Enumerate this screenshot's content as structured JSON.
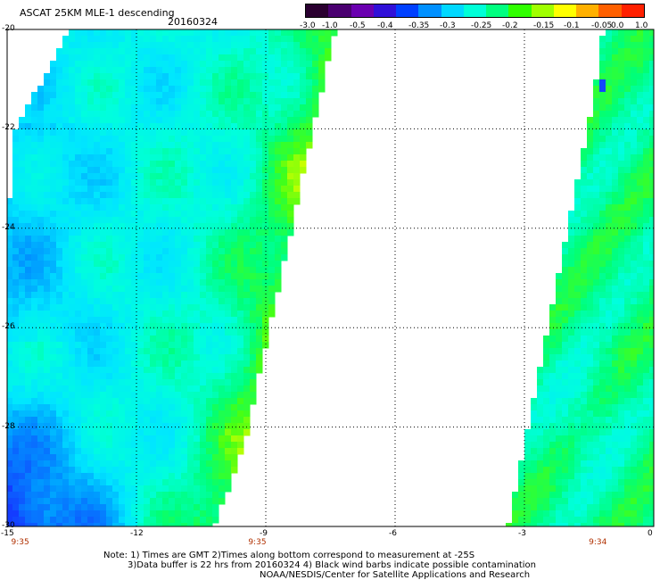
{
  "header": {
    "title": "ASCAT 25KM MLE-1 descending",
    "date": "20160324"
  },
  "colorbar": {
    "labels": [
      "-3.0",
      "-1.0",
      "-0.5",
      "-0.4",
      "-0.35",
      "-0.3",
      "-0.25",
      "-0.2",
      "-0.15",
      "-0.1",
      "-0.05",
      "0.0",
      "1.0"
    ],
    "colors": [
      "#2a0030",
      "#4a0070",
      "#6a00b0",
      "#3010d8",
      "#0040ff",
      "#0090ff",
      "#00d8ff",
      "#00ffd8",
      "#00ff80",
      "#30ff00",
      "#a0ff00",
      "#ffff00",
      "#ffb000",
      "#ff6000",
      "#ff2000"
    ]
  },
  "axes": {
    "latitude_ticks": [
      "-20",
      "-22",
      "-24",
      "-26",
      "-28",
      "-30"
    ],
    "longitude_ticks": [
      "-15",
      "-12",
      "-9",
      "-6",
      "-3",
      "0"
    ],
    "lat_range": [
      -30,
      -20
    ],
    "lon_range": [
      -15,
      0
    ],
    "grid": "dotted"
  },
  "pass_times": [
    "9:35",
    "9:35",
    "9:34"
  ],
  "notes": [
    "Note: 1) Times are GMT 2)Times along bottom correspond to measurement at -25S",
    "3)Data buffer is 22 hrs from 20160324 4) Black wind barbs indicate possible contamination",
    "NOAA/NESDIS/Center for Satellite Applications and Research"
  ],
  "swaths": {
    "west_swath": "cyan-dominant MLE field, deep blue in southwest corner, green/yellow on eastern edge",
    "east_swath": "green/cyan MLE field with small blue patch near -21.2"
  }
}
